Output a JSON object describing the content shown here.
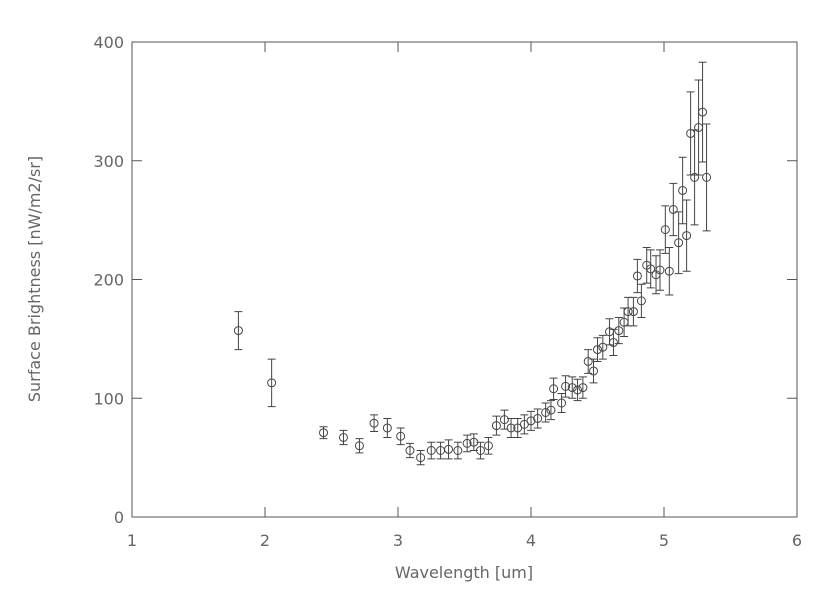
{
  "chart_data": {
    "type": "scatter",
    "x_label": "Wavelength [um]",
    "y_label": "Surface Brightness [nW/m2/sr]",
    "xlim": [
      1,
      6
    ],
    "xticks": [
      1,
      2,
      3,
      4,
      5,
      6
    ],
    "ylim": [
      0,
      400
    ],
    "yticks": [
      0,
      100,
      200,
      300,
      400
    ],
    "color": "#444444",
    "x": [
      1.8,
      2.05,
      2.44,
      2.59,
      2.71,
      2.82,
      2.92,
      3.02,
      3.09,
      3.17,
      3.25,
      3.32,
      3.38,
      3.45,
      3.52,
      3.57,
      3.62,
      3.68,
      3.74,
      3.8,
      3.85,
      3.9,
      3.95,
      4.0,
      4.05,
      4.11,
      4.15,
      4.17,
      4.23,
      4.26,
      4.31,
      4.35,
      4.39,
      4.43,
      4.47,
      4.5,
      4.54,
      4.59,
      4.62,
      4.66,
      4.7,
      4.73,
      4.77,
      4.8,
      4.83,
      4.87,
      4.9,
      4.94,
      4.97,
      5.01,
      5.04,
      5.07,
      5.11,
      5.14,
      5.17,
      5.2,
      5.23,
      5.26,
      5.29,
      5.32
    ],
    "values": [
      157,
      113,
      71,
      67,
      60,
      79,
      75,
      68,
      56,
      50,
      56,
      56,
      57,
      56,
      62,
      63,
      56,
      60,
      77,
      82,
      75,
      75,
      78,
      81,
      83,
      88,
      90,
      108,
      96,
      110,
      109,
      107,
      109,
      131,
      123,
      141,
      143,
      156,
      147,
      157,
      164,
      173,
      173,
      203,
      182,
      212,
      209,
      204,
      208,
      242,
      207,
      259,
      231,
      275,
      237,
      323,
      286,
      328,
      341,
      286
    ],
    "errors": [
      16,
      20,
      5,
      6,
      6,
      7,
      8,
      7,
      6,
      6,
      7,
      7,
      8,
      7,
      7,
      7,
      7,
      7,
      8,
      8,
      8,
      8,
      8,
      8,
      8,
      8,
      8,
      9,
      8,
      9,
      9,
      9,
      9,
      10,
      10,
      10,
      10,
      11,
      11,
      11,
      12,
      12,
      12,
      14,
      14,
      15,
      16,
      16,
      17,
      20,
      20,
      22,
      26,
      28,
      30,
      35,
      40,
      40,
      42,
      45
    ]
  }
}
